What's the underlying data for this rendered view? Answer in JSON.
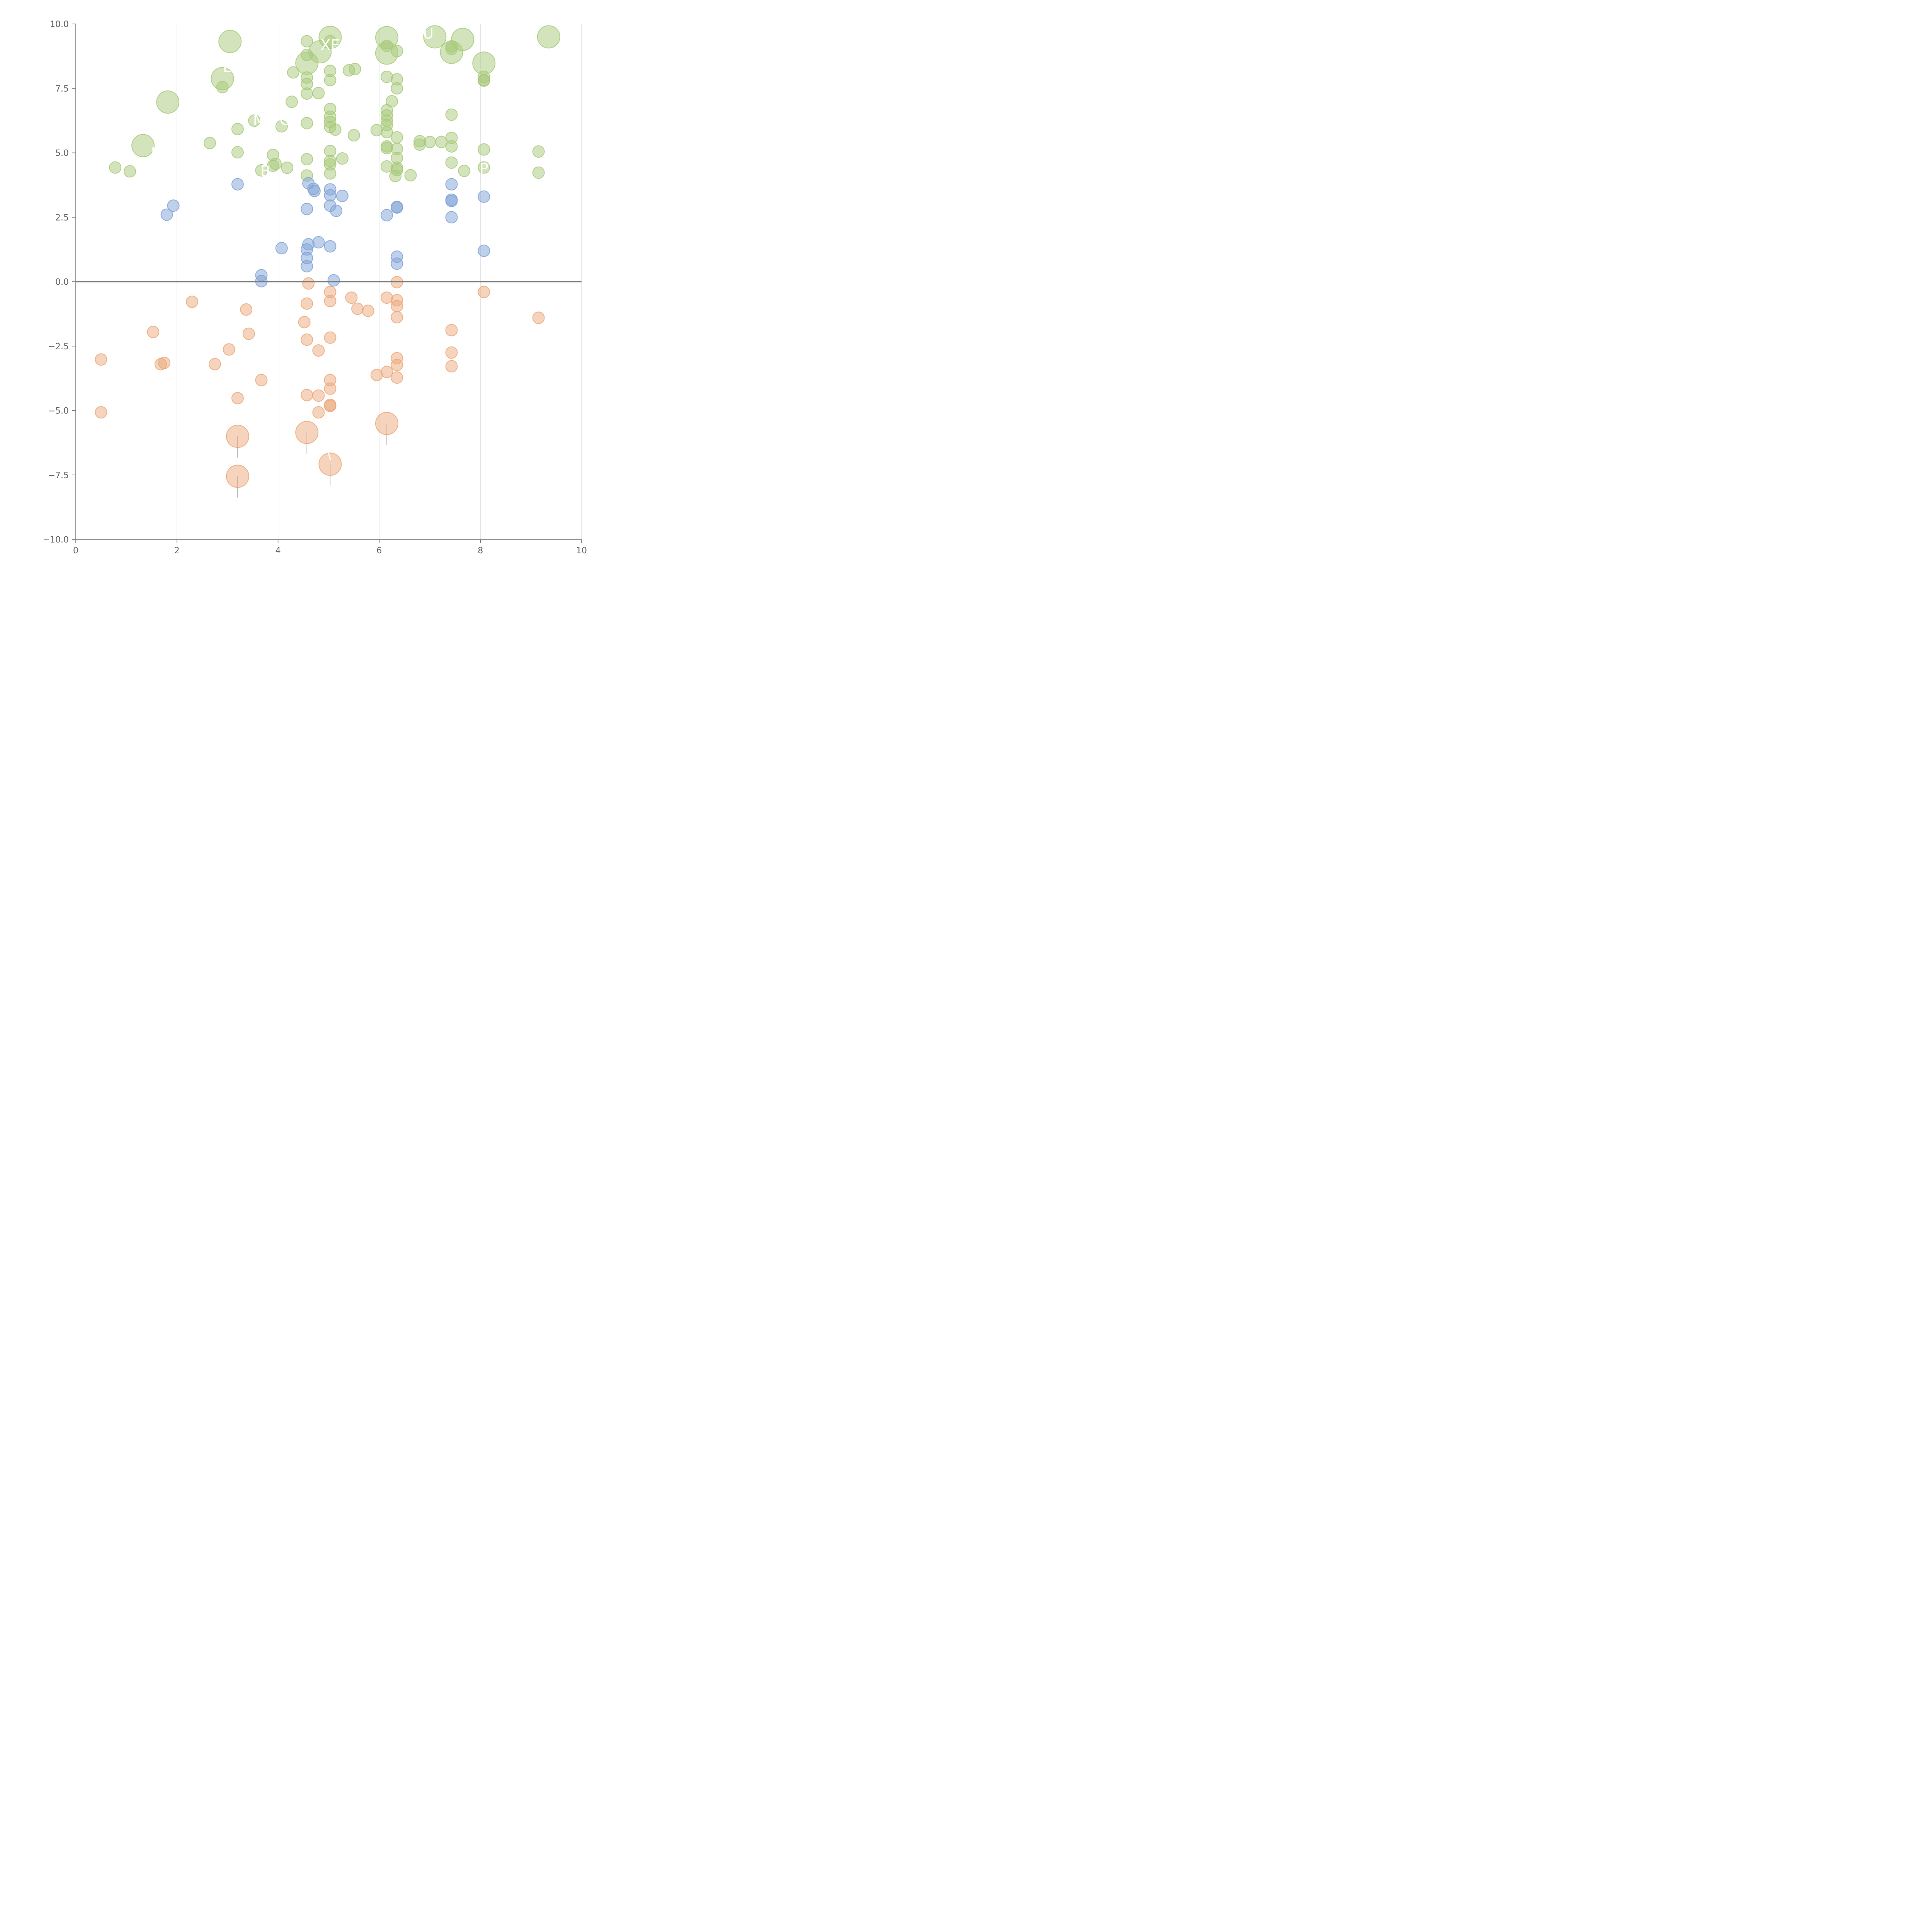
{
  "chart_data": {
    "type": "scatter",
    "title": "",
    "xlabel": "",
    "ylabel": "",
    "xlim": [
      0,
      10
    ],
    "ylim": [
      -10,
      10
    ],
    "x_ticks": [
      "0",
      "2",
      "4",
      "6",
      "8",
      "10"
    ],
    "y_ticks": [
      "10.0",
      "7.5",
      "5.0",
      "2.5",
      "0.0",
      "−2.5",
      "−5.0",
      "−7.5",
      "−10.0"
    ],
    "x_grid": true,
    "y_grid": false,
    "zero_line": true,
    "bubble_size": "small bubbles are uniform; larger bubbles mark labelled points",
    "colors": {
      "high": "#a8c97a",
      "mid": "#7fa2d6",
      "low": "#eba87a",
      "label_line_light": "#ffffff",
      "label_line_dark": "#aaaaaa"
    },
    "series": [
      {
        "group": "high",
        "points": [
          [
            3.05,
            9.32,
            1
          ],
          [
            4.57,
            9.33,
            0
          ],
          [
            5.03,
            9.48,
            1
          ],
          [
            5.03,
            9.33,
            0
          ],
          [
            4.83,
            8.92,
            1
          ],
          [
            4.57,
            8.48,
            1
          ],
          [
            4.57,
            8.8,
            0
          ],
          [
            6.15,
            9.47,
            1
          ],
          [
            6.15,
            8.87,
            1
          ],
          [
            6.15,
            9.15,
            0
          ],
          [
            6.35,
            8.95,
            0
          ],
          [
            7.1,
            9.5,
            1
          ],
          [
            7.43,
            8.9,
            1
          ],
          [
            7.43,
            9.13,
            0
          ],
          [
            7.43,
            9.03,
            0
          ],
          [
            7.65,
            9.4,
            1
          ],
          [
            9.35,
            9.5,
            1
          ],
          [
            8.07,
            8.48,
            1
          ],
          [
            8.07,
            7.95,
            0
          ],
          [
            8.07,
            7.82,
            0
          ],
          [
            8.07,
            7.8,
            0
          ],
          [
            2.9,
            7.88,
            1
          ],
          [
            2.9,
            7.55,
            0
          ],
          [
            1.82,
            6.97,
            1
          ],
          [
            4.3,
            8.12,
            0
          ],
          [
            4.57,
            7.92,
            0
          ],
          [
            4.57,
            7.67,
            0
          ],
          [
            4.57,
            7.3,
            0
          ],
          [
            4.8,
            7.32,
            0
          ],
          [
            5.03,
            8.18,
            0
          ],
          [
            5.03,
            7.82,
            0
          ],
          [
            5.4,
            8.2,
            0
          ],
          [
            5.52,
            8.25,
            0
          ],
          [
            6.15,
            7.95,
            0
          ],
          [
            6.35,
            7.85,
            0
          ],
          [
            6.35,
            7.5,
            0
          ],
          [
            4.27,
            6.98,
            0
          ],
          [
            6.25,
            7.0,
            0
          ],
          [
            3.53,
            6.25,
            0
          ],
          [
            4.07,
            6.03,
            0
          ],
          [
            4.57,
            6.15,
            0
          ],
          [
            5.03,
            6.7,
            0
          ],
          [
            5.03,
            6.4,
            0
          ],
          [
            5.03,
            6.2,
            0
          ],
          [
            5.03,
            6.0,
            0
          ],
          [
            5.13,
            5.9,
            0
          ],
          [
            6.15,
            6.65,
            0
          ],
          [
            6.15,
            6.45,
            0
          ],
          [
            6.15,
            6.25,
            0
          ],
          [
            6.15,
            6.08,
            0
          ],
          [
            6.15,
            5.8,
            0
          ],
          [
            5.95,
            5.88,
            0
          ],
          [
            5.5,
            5.68,
            0
          ],
          [
            3.2,
            5.92,
            0
          ],
          [
            7.43,
            6.48,
            0
          ],
          [
            1.33,
            5.28,
            1
          ],
          [
            2.65,
            5.38,
            0
          ],
          [
            3.2,
            5.02,
            0
          ],
          [
            6.15,
            5.25,
            0
          ],
          [
            6.15,
            5.18,
            0
          ],
          [
            6.35,
            5.6,
            0
          ],
          [
            6.35,
            5.15,
            0
          ],
          [
            6.35,
            4.8,
            0
          ],
          [
            6.8,
            5.45,
            0
          ],
          [
            6.8,
            5.32,
            0
          ],
          [
            7.0,
            5.42,
            0
          ],
          [
            7.23,
            5.42,
            0
          ],
          [
            7.43,
            5.58,
            0
          ],
          [
            7.43,
            5.25,
            0
          ],
          [
            7.43,
            4.62,
            0
          ],
          [
            8.07,
            5.13,
            0
          ],
          [
            9.15,
            5.05,
            0
          ],
          [
            5.03,
            5.07,
            0
          ],
          [
            5.03,
            4.68,
            0
          ],
          [
            5.03,
            4.55,
            0
          ],
          [
            5.27,
            4.78,
            0
          ],
          [
            4.57,
            4.75,
            0
          ],
          [
            3.9,
            4.92,
            0
          ],
          [
            3.9,
            4.5,
            0
          ],
          [
            3.95,
            4.57,
            0
          ],
          [
            4.18,
            4.42,
            0
          ],
          [
            3.67,
            4.32,
            0
          ],
          [
            4.57,
            4.12,
            0
          ],
          [
            5.03,
            4.2,
            0
          ],
          [
            0.78,
            4.43,
            0
          ],
          [
            1.07,
            4.28,
            0
          ],
          [
            6.15,
            4.47,
            0
          ],
          [
            6.35,
            4.42,
            0
          ],
          [
            6.35,
            4.33,
            0
          ],
          [
            6.32,
            4.1,
            0
          ],
          [
            6.62,
            4.13,
            0
          ],
          [
            7.68,
            4.3,
            0
          ],
          [
            8.07,
            4.43,
            0
          ],
          [
            9.15,
            4.23,
            0
          ]
        ]
      },
      {
        "group": "mid",
        "points": [
          [
            3.2,
            3.78,
            0
          ],
          [
            1.93,
            2.95,
            0
          ],
          [
            1.8,
            2.6,
            0
          ],
          [
            4.6,
            3.82,
            0
          ],
          [
            4.7,
            3.6,
            0
          ],
          [
            4.72,
            3.52,
            0
          ],
          [
            5.03,
            3.58,
            0
          ],
          [
            5.03,
            3.35,
            0
          ],
          [
            5.27,
            3.33,
            0
          ],
          [
            5.03,
            2.95,
            0
          ],
          [
            5.15,
            2.75,
            0
          ],
          [
            4.57,
            2.82,
            0
          ],
          [
            6.15,
            2.58,
            0
          ],
          [
            6.35,
            2.9,
            0
          ],
          [
            6.35,
            2.88,
            0
          ],
          [
            7.43,
            3.78,
            0
          ],
          [
            7.43,
            3.18,
            0
          ],
          [
            7.43,
            3.13,
            0
          ],
          [
            7.43,
            2.5,
            0
          ],
          [
            8.07,
            3.3,
            0
          ],
          [
            4.07,
            1.3,
            0
          ],
          [
            4.6,
            1.45,
            0
          ],
          [
            4.57,
            1.25,
            0
          ],
          [
            4.57,
            0.92,
            0
          ],
          [
            4.57,
            0.6,
            0
          ],
          [
            4.8,
            1.53,
            0
          ],
          [
            5.03,
            1.37,
            0
          ],
          [
            6.35,
            0.97,
            0
          ],
          [
            6.35,
            0.7,
            0
          ],
          [
            8.07,
            1.2,
            0
          ],
          [
            3.67,
            0.25,
            0
          ],
          [
            3.67,
            0.02,
            0
          ],
          [
            5.1,
            0.05,
            0
          ]
        ]
      },
      {
        "group": "low",
        "points": [
          [
            4.6,
            -0.07,
            0
          ],
          [
            5.03,
            -0.4,
            0
          ],
          [
            5.03,
            -0.75,
            0
          ],
          [
            4.57,
            -0.85,
            0
          ],
          [
            5.45,
            -0.62,
            0
          ],
          [
            5.57,
            -1.05,
            0
          ],
          [
            5.78,
            -1.13,
            0
          ],
          [
            6.15,
            -0.62,
            0
          ],
          [
            6.35,
            -0.02,
            0
          ],
          [
            6.35,
            -0.72,
            0
          ],
          [
            6.35,
            -0.95,
            0
          ],
          [
            6.35,
            -1.38,
            0
          ],
          [
            8.07,
            -0.4,
            0
          ],
          [
            9.15,
            -1.4,
            0
          ],
          [
            2.3,
            -0.78,
            0
          ],
          [
            3.37,
            -1.08,
            0
          ],
          [
            4.52,
            -1.57,
            0
          ],
          [
            1.53,
            -1.95,
            0
          ],
          [
            3.42,
            -2.02,
            0
          ],
          [
            4.57,
            -2.25,
            0
          ],
          [
            5.03,
            -2.17,
            0
          ],
          [
            4.8,
            -2.67,
            0
          ],
          [
            3.03,
            -2.63,
            0
          ],
          [
            7.43,
            -1.88,
            0
          ],
          [
            7.43,
            -2.75,
            0
          ],
          [
            7.43,
            -3.28,
            0
          ],
          [
            6.35,
            -2.97,
            0
          ],
          [
            6.35,
            -3.23,
            0
          ],
          [
            6.35,
            -3.72,
            0
          ],
          [
            6.15,
            -3.5,
            0
          ],
          [
            5.95,
            -3.62,
            0
          ],
          [
            0.5,
            -3.02,
            0
          ],
          [
            1.68,
            -3.2,
            0
          ],
          [
            1.75,
            -3.15,
            0
          ],
          [
            2.75,
            -3.2,
            0
          ],
          [
            3.67,
            -3.82,
            0
          ],
          [
            5.03,
            -3.82,
            0
          ],
          [
            5.03,
            -4.15,
            0
          ],
          [
            3.2,
            -4.52,
            0
          ],
          [
            4.57,
            -4.4,
            0
          ],
          [
            4.8,
            -4.42,
            0
          ],
          [
            5.03,
            -4.78,
            0
          ],
          [
            5.03,
            -4.82,
            0
          ],
          [
            4.8,
            -5.07,
            0
          ],
          [
            0.5,
            -5.07,
            0
          ],
          [
            3.2,
            -6.0,
            1
          ],
          [
            4.57,
            -5.85,
            1
          ],
          [
            6.15,
            -5.5,
            1
          ],
          [
            5.03,
            -7.08,
            1
          ],
          [
            3.2,
            -7.55,
            1
          ]
        ]
      }
    ],
    "annotations": [
      {
        "text": "XE",
        "x": 5.03,
        "y": 9.2
      },
      {
        "text": "U",
        "x": 6.97,
        "y": 9.65
      },
      {
        "text": "E",
        "x": 3.0,
        "y": 8.35
      },
      {
        "text": "M",
        "x": 3.63,
        "y": 6.3
      },
      {
        "text": "C",
        "x": 4.13,
        "y": 6.3
      },
      {
        "text": "F",
        "x": 1.57,
        "y": 5.0
      },
      {
        "text": "P",
        "x": 8.07,
        "y": 4.4
      },
      {
        "text": "B",
        "x": 3.75,
        "y": 4.3
      },
      {
        "text": "\\",
        "x": 5.0,
        "y": -6.65
      }
    ]
  }
}
